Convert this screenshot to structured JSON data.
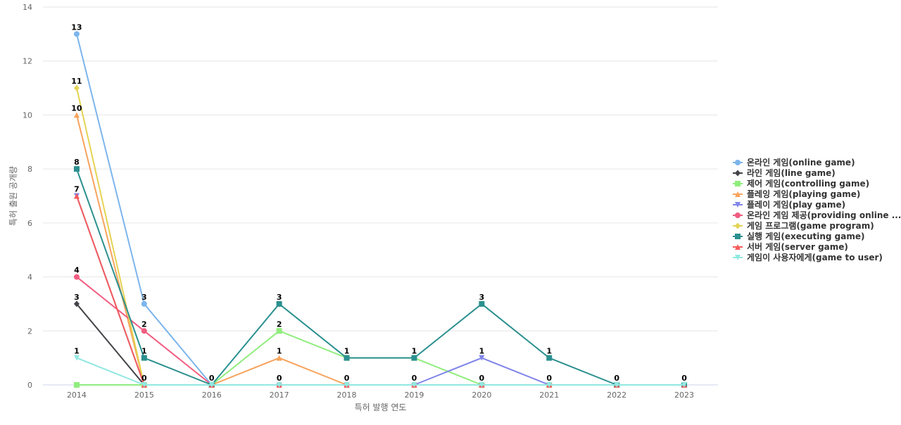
{
  "chart_data": {
    "type": "line",
    "title": "",
    "xlabel": "특허 발행 연도",
    "ylabel": "특허 출원 공개량",
    "ylim": [
      0,
      14
    ],
    "yticks": [
      0,
      2,
      4,
      6,
      8,
      10,
      12,
      14
    ],
    "categories": [
      "2014",
      "2015",
      "2016",
      "2017",
      "2018",
      "2019",
      "2020",
      "2021",
      "2022",
      "2023"
    ],
    "grid": true,
    "legend_position": "right",
    "series": [
      {
        "name": "온라인 게임(online game)",
        "color": "#7cb5ec",
        "marker": "circle",
        "values": [
          13,
          3,
          0,
          0,
          0,
          0,
          0,
          0,
          0,
          0
        ]
      },
      {
        "name": "라인 게임(line game)",
        "color": "#434348",
        "marker": "diamond",
        "values": [
          3,
          0,
          0,
          0,
          0,
          0,
          0,
          0,
          0,
          0
        ]
      },
      {
        "name": "제어 게임(controlling game)",
        "color": "#90ed7d",
        "marker": "square",
        "values": [
          0,
          0,
          0,
          2,
          1,
          1,
          0,
          0,
          0,
          0
        ]
      },
      {
        "name": "플레잉 게임(playing game)",
        "color": "#f7a35c",
        "marker": "triangle",
        "values": [
          10,
          0,
          0,
          1,
          0,
          0,
          0,
          0,
          0,
          0
        ]
      },
      {
        "name": "플레이 게임(play game)",
        "color": "#8085e9",
        "marker": "triangle-down",
        "values": [
          7,
          0,
          0,
          0,
          0,
          0,
          1,
          0,
          0,
          0
        ]
      },
      {
        "name": "온라인 게임 제공(providing online ...",
        "color": "#f15c80",
        "marker": "circle",
        "values": [
          4,
          2,
          0,
          0,
          0,
          0,
          0,
          0,
          0,
          0
        ]
      },
      {
        "name": "게임 프로그램(game program)",
        "color": "#e4d354",
        "marker": "diamond",
        "values": [
          11,
          0,
          0,
          0,
          0,
          0,
          0,
          0,
          0,
          0
        ]
      },
      {
        "name": "실행 게임(executing game)",
        "color": "#2b908f",
        "marker": "square",
        "values": [
          8,
          1,
          0,
          3,
          1,
          1,
          3,
          1,
          0,
          0
        ]
      },
      {
        "name": "서버 게임(server game)",
        "color": "#f45b5b",
        "marker": "triangle",
        "values": [
          7,
          0,
          0,
          0,
          0,
          0,
          0,
          0,
          0,
          0
        ]
      },
      {
        "name": "게임이 사용자에게(game to user)",
        "color": "#91e8e1",
        "marker": "triangle-down",
        "values": [
          1,
          0,
          0,
          0,
          0,
          0,
          0,
          0,
          0,
          0
        ]
      }
    ],
    "data_labels": [
      {
        "x": "2014",
        "value": 13
      },
      {
        "x": "2014",
        "value": 11
      },
      {
        "x": "2014",
        "value": 10
      },
      {
        "x": "2014",
        "value": 8
      },
      {
        "x": "2014",
        "value": 7
      },
      {
        "x": "2014",
        "value": 4
      },
      {
        "x": "2014",
        "value": 3
      },
      {
        "x": "2014",
        "value": 1
      },
      {
        "x": "2015",
        "value": 3
      },
      {
        "x": "2015",
        "value": 2
      },
      {
        "x": "2015",
        "value": 1
      },
      {
        "x": "2015",
        "value": 0
      },
      {
        "x": "2016",
        "value": 0
      },
      {
        "x": "2017",
        "value": 3
      },
      {
        "x": "2017",
        "value": 2
      },
      {
        "x": "2017",
        "value": 1
      },
      {
        "x": "2017",
        "value": 0
      },
      {
        "x": "2018",
        "value": 1
      },
      {
        "x": "2018",
        "value": 0
      },
      {
        "x": "2019",
        "value": 1
      },
      {
        "x": "2019",
        "value": 0
      },
      {
        "x": "2020",
        "value": 3
      },
      {
        "x": "2020",
        "value": 1
      },
      {
        "x": "2020",
        "value": 0
      },
      {
        "x": "2021",
        "value": 1
      },
      {
        "x": "2021",
        "value": 0
      },
      {
        "x": "2022",
        "value": 0
      },
      {
        "x": "2023",
        "value": 0
      }
    ]
  }
}
